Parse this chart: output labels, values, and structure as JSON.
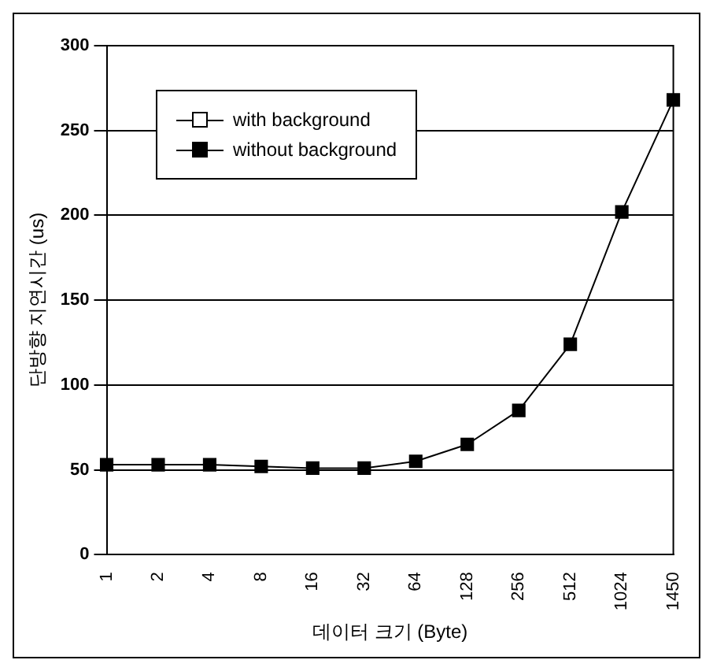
{
  "chart_data": {
    "type": "line",
    "xlabel": "데이터 크기 (Byte)",
    "ylabel": "단방향 지연시간 (us)",
    "categories": [
      "1",
      "2",
      "4",
      "8",
      "16",
      "32",
      "64",
      "128",
      "256",
      "512",
      "1024",
      "1450"
    ],
    "series": [
      {
        "name": "with background",
        "color": "#ffffff",
        "values": [
          null,
          null,
          null,
          null,
          null,
          null,
          null,
          null,
          null,
          null,
          null,
          null
        ]
      },
      {
        "name": "without background",
        "color": "#000000",
        "values": [
          53,
          53,
          53,
          52,
          51,
          51,
          55,
          65,
          85,
          124,
          202,
          268
        ]
      }
    ],
    "marker": "square",
    "ylim": [
      0,
      300
    ],
    "yticks": [
      0,
      50,
      100,
      150,
      200,
      250,
      300
    ],
    "grid": "y",
    "legend": "top left"
  }
}
